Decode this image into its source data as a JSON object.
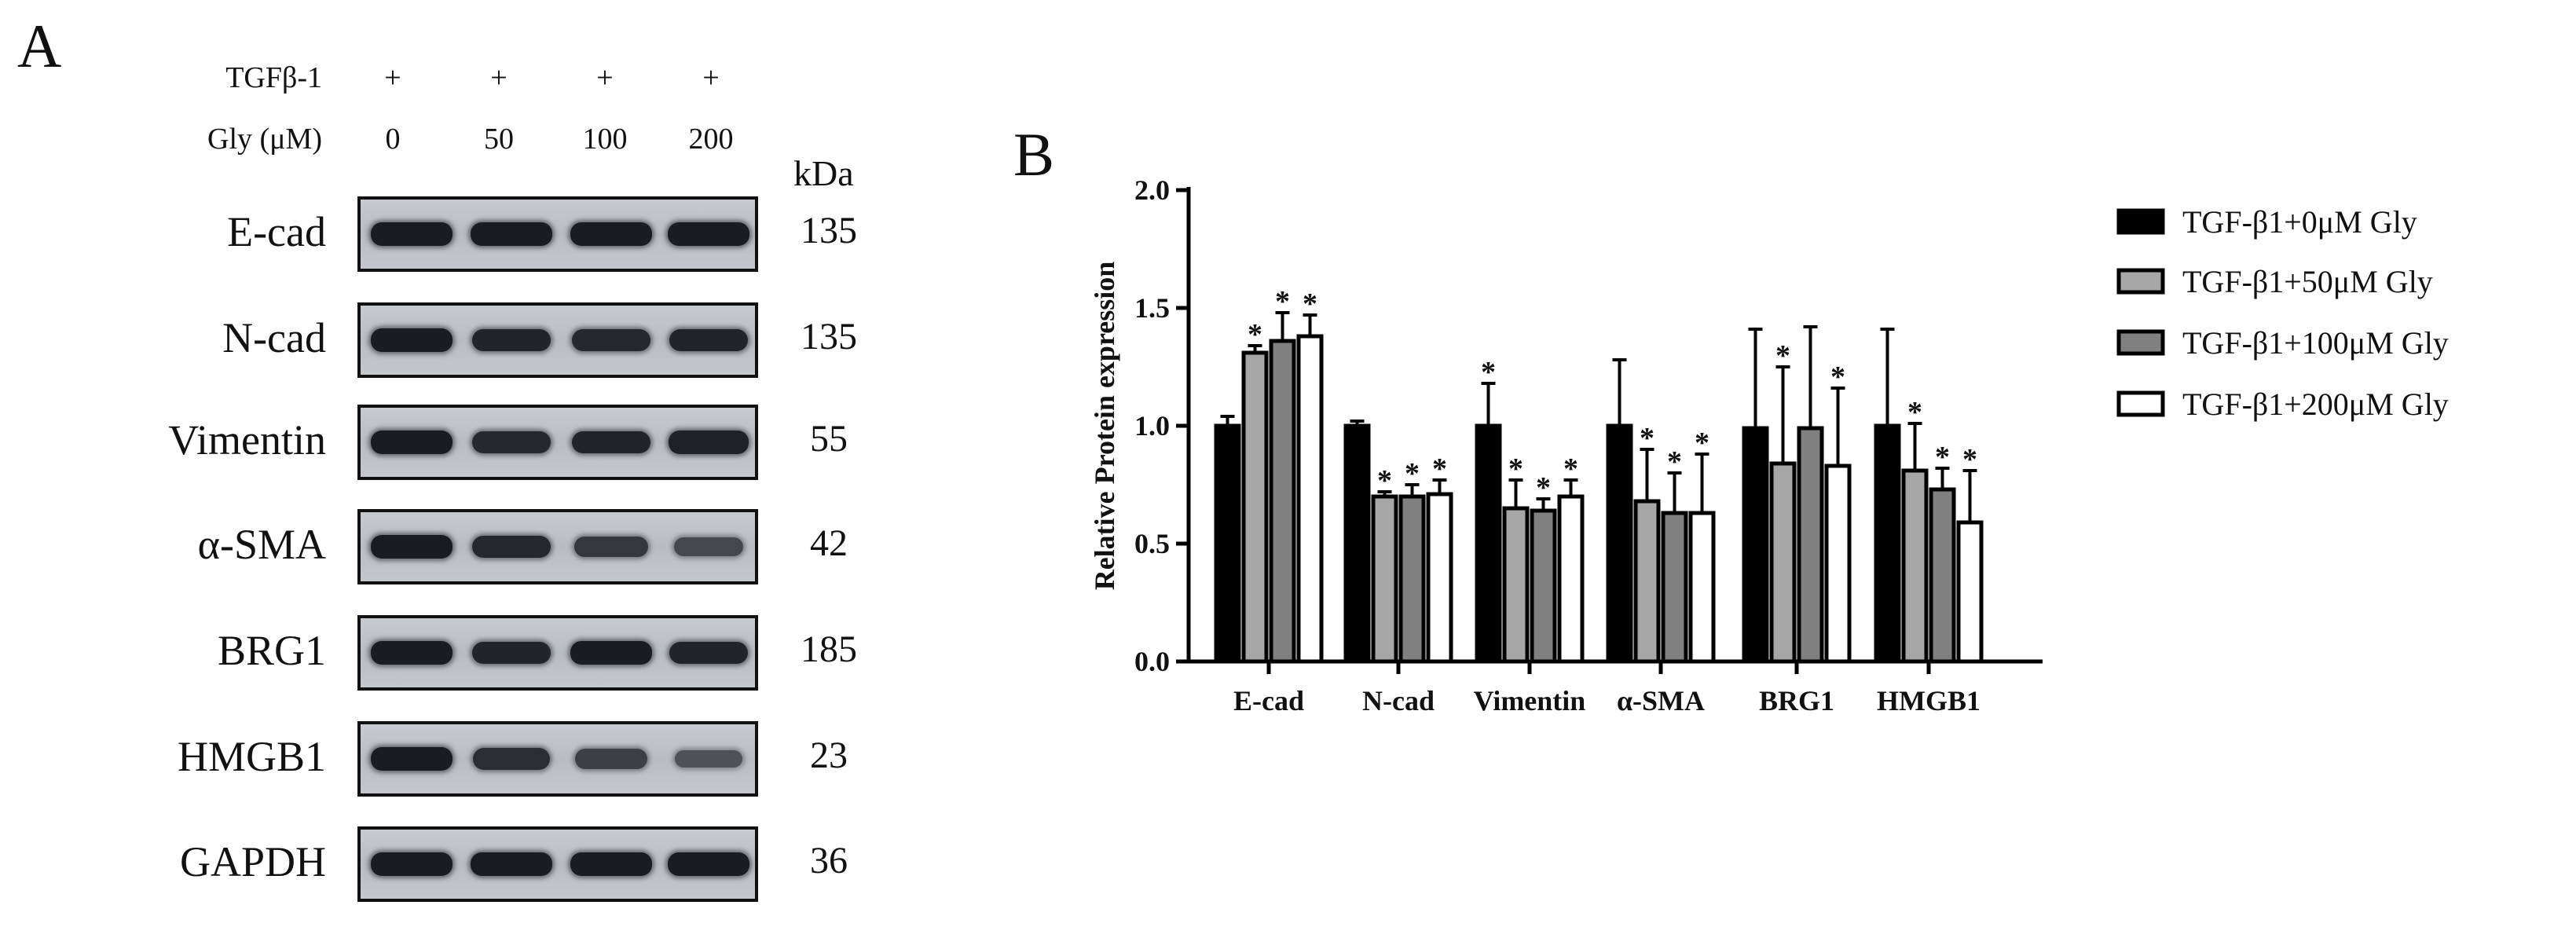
{
  "panel_a": {
    "letter": "A",
    "conditions": [
      {
        "label": "TGFβ-1",
        "values": [
          "+",
          "+",
          "+",
          "+"
        ]
      },
      {
        "label": "Gly (μM)",
        "values": [
          "0",
          "50",
          "100",
          "200"
        ]
      }
    ],
    "kda_header": "kDa",
    "blots": [
      {
        "label": "E-cad",
        "kda": "135",
        "band_intensity": [
          1.0,
          1.0,
          1.0,
          1.0
        ]
      },
      {
        "label": "N-cad",
        "kda": "135",
        "band_intensity": [
          1.0,
          0.9,
          0.85,
          0.9
        ]
      },
      {
        "label": "Vimentin",
        "kda": "55",
        "band_intensity": [
          1.0,
          0.85,
          0.9,
          0.95
        ]
      },
      {
        "label": "α-SMA",
        "kda": "42",
        "band_intensity": [
          1.0,
          0.85,
          0.7,
          0.5
        ]
      },
      {
        "label": "BRG1",
        "kda": "185",
        "band_intensity": [
          1.0,
          0.9,
          1.0,
          0.9
        ]
      },
      {
        "label": "HMGB1",
        "kda": "23",
        "band_intensity": [
          1.0,
          0.8,
          0.6,
          0.4
        ]
      },
      {
        "label": "GAPDH",
        "kda": "36",
        "band_intensity": [
          1.0,
          1.0,
          1.0,
          1.0
        ]
      }
    ]
  },
  "panel_b": {
    "letter": "B",
    "colors": {
      "bar_fill": [
        "#000000",
        "#a6a6a6",
        "#808080",
        "#ffffff"
      ],
      "stroke": "#000000"
    }
  },
  "chart_data": {
    "type": "bar",
    "title": "",
    "xlabel": "",
    "ylabel": "Relative Protein expression",
    "ylim": [
      0,
      2.0
    ],
    "yticks": [
      "0.0",
      "0.5",
      "1.0",
      "1.5",
      "2.0"
    ],
    "categories": [
      "E-cad",
      "N-cad",
      "Vimentin",
      "α-SMA",
      "BRG1",
      "HMGB1"
    ],
    "series": [
      {
        "name": "TGF-β1+0μM Gly",
        "values": [
          1.0,
          1.0,
          1.0,
          1.0,
          0.99,
          1.0
        ],
        "errors": [
          0.04,
          0.02,
          0.18,
          0.28,
          0.42,
          0.41
        ],
        "significant": [
          false,
          false,
          true,
          false,
          false,
          false
        ]
      },
      {
        "name": "TGF-β1+50μM Gly",
        "values": [
          1.31,
          0.7,
          0.65,
          0.68,
          0.84,
          0.81
        ],
        "errors": [
          0.03,
          0.02,
          0.12,
          0.22,
          0.41,
          0.2
        ],
        "significant": [
          true,
          true,
          true,
          true,
          true,
          true
        ]
      },
      {
        "name": "TGF-β1+100μM Gly",
        "values": [
          1.36,
          0.7,
          0.64,
          0.63,
          0.99,
          0.73
        ],
        "errors": [
          0.12,
          0.05,
          0.05,
          0.17,
          0.43,
          0.09
        ],
        "significant": [
          true,
          true,
          true,
          true,
          false,
          true
        ]
      },
      {
        "name": "TGF-β1+200μM Gly",
        "values": [
          1.38,
          0.71,
          0.7,
          0.63,
          0.83,
          0.59
        ],
        "errors": [
          0.09,
          0.06,
          0.07,
          0.25,
          0.33,
          0.22
        ],
        "significant": [
          true,
          true,
          true,
          true,
          true,
          true
        ]
      }
    ],
    "significance_marker": "*",
    "legend_position": "right"
  }
}
